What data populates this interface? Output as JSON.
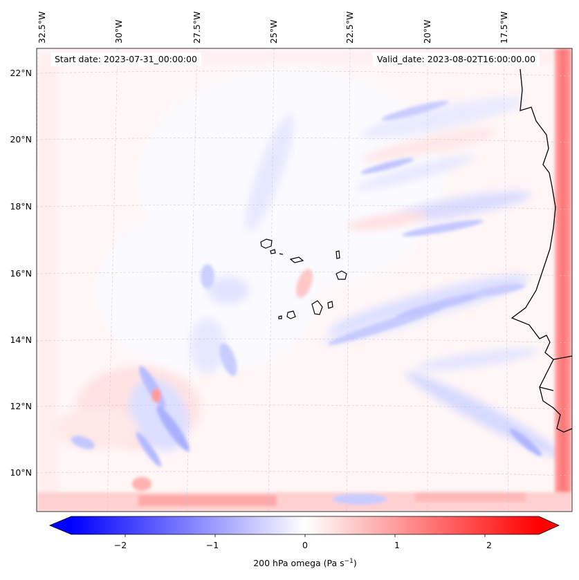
{
  "map": {
    "start_date": "Start date: 2023-07-31_00:00:00",
    "valid_date": "Valid_date: 2023-08-02T16:00:00.00",
    "lon_labels": [
      "32.5°W",
      "30°W",
      "27.5°W",
      "25°W",
      "22.5°W",
      "20°W",
      "17.5°W"
    ],
    "lat_labels": [
      "22°N",
      "20°N",
      "18°N",
      "16°N",
      "14°N",
      "12°N",
      "10°N"
    ],
    "land_features": "Cabo Verde islands and West African coastline (Senegal, Gambia, Guinea-Bissau)",
    "colors": {
      "negative": "#0000ff",
      "neutral": "#ffffff",
      "positive": "#ff0000",
      "coastline": "#000000",
      "gridline": "#c8c8d2"
    }
  },
  "colorbar": {
    "ticks": [
      -2,
      -1,
      0,
      1,
      2
    ],
    "tick_labels": [
      "−2",
      "−1",
      "0",
      "1",
      "2"
    ],
    "range": [
      -2.6,
      2.6
    ],
    "extend": "both",
    "label_main": "200 hPa omega (Pa s",
    "label_exp": "−1",
    "label_tail": ")"
  }
}
